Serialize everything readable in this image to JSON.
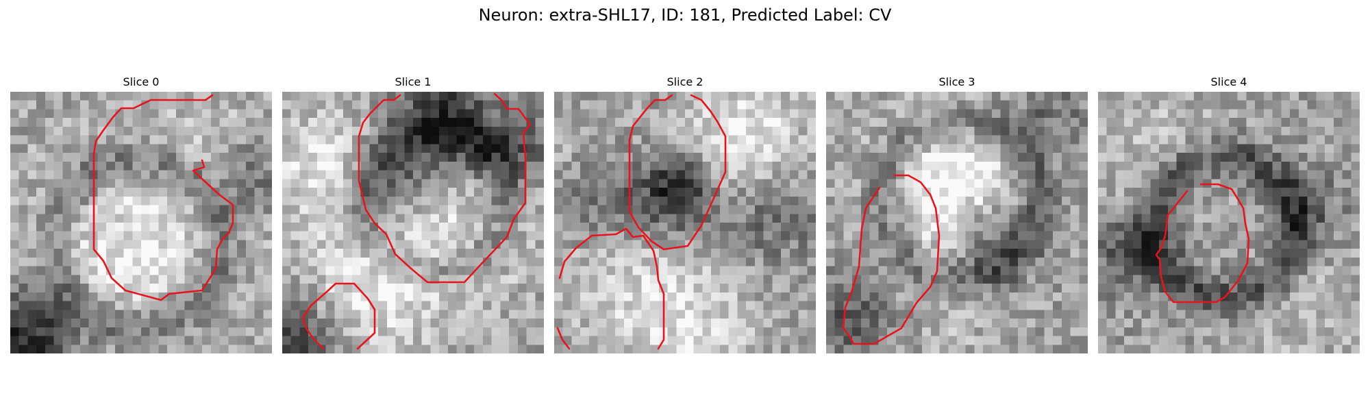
{
  "figure": {
    "title": "Neuron: extra-SHL17, ID: 181, Predicted Label: CV"
  },
  "colors": {
    "contour": "#e8141c",
    "background": "#ffffff",
    "colormap": "gray"
  },
  "panels": [
    {
      "title": "Slice 0",
      "image": "grayscale microscopy patch with red neuron contour"
    },
    {
      "title": "Slice 1",
      "image": "grayscale microscopy patch with red neuron contour"
    },
    {
      "title": "Slice 2",
      "image": "grayscale microscopy patch with red neuron contour"
    },
    {
      "title": "Slice 3",
      "image": "grayscale microscopy patch with red neuron contour"
    },
    {
      "title": "Slice 4",
      "image": "grayscale microscopy patch with red neuron contour"
    }
  ]
}
